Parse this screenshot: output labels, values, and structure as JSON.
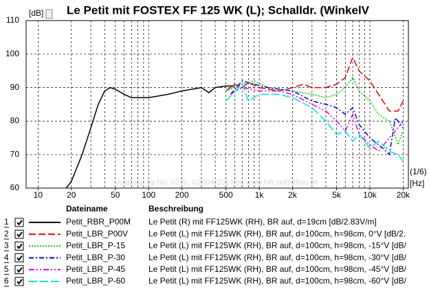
{
  "chart_data": {
    "type": "line",
    "log_x": true,
    "grid": true,
    "title": "Le Petit mit FOSTEX FF 125 WK (L); Schalldr. (WinkelV",
    "ylabel": "[dB]",
    "xlabel": "[Hz]",
    "smoothing": "(1/6)",
    "watermark": "JustDisp by No. 0270, ©2004-2014 by www.hifi-selbstbau.de",
    "legend_header_name": "Dateiname",
    "legend_header_desc": "Beschreibung",
    "xlim": [
      7.8,
      22300
    ],
    "ylim": [
      60,
      110
    ],
    "yticks": [
      60,
      70,
      80,
      90,
      100,
      110
    ],
    "xticks": [
      10,
      20,
      50,
      100,
      200,
      500,
      {
        "value": 1000,
        "label": "1k"
      },
      {
        "value": 2000,
        "label": "2k"
      },
      {
        "value": 5000,
        "label": "5k"
      },
      {
        "value": 10000,
        "label": "10k"
      },
      {
        "value": 20000,
        "label": "20k"
      }
    ],
    "xgrid": [
      10,
      20,
      30,
      40,
      50,
      60,
      70,
      80,
      90,
      100,
      200,
      300,
      400,
      500,
      600,
      700,
      800,
      900,
      1000,
      2000,
      3000,
      4000,
      5000,
      6000,
      7000,
      8000,
      9000,
      10000,
      20000
    ],
    "series": [
      {
        "number": "1",
        "name": "Petit_RBR_P00M",
        "description": "Le Petit (R) mit FF125WK (RH), BR auf, d=19cm [dB/2.83V/m]",
        "color": "#000000",
        "dash": "none",
        "x": [
          18,
          20,
          25,
          30,
          35,
          40,
          45,
          50,
          60,
          70,
          100,
          150,
          200,
          300,
          350,
          400,
          500,
          600
        ],
        "values": [
          60,
          62,
          70,
          78,
          85,
          89,
          90,
          89.5,
          88,
          87,
          87,
          88,
          89,
          90,
          88.5,
          90,
          90.5,
          90.5
        ]
      },
      {
        "number": "2",
        "name": "Petit_LBR_P00V",
        "description": "Le Petit (L) mit FF125WK (RH), BR auf, d=100cm, h=98cm, 0°V [dB/2.",
        "color": "#e00000",
        "dash": "10,4",
        "x": [
          500,
          600,
          700,
          800,
          1000,
          1500,
          2000,
          2500,
          3000,
          4000,
          5000,
          6000,
          7000,
          8000,
          10000,
          12000,
          15000,
          18000,
          20000
        ],
        "values": [
          89,
          91,
          90,
          91.5,
          90,
          89,
          90,
          91,
          90,
          90,
          91,
          93,
          99,
          95,
          92,
          88,
          83,
          83,
          86
        ]
      },
      {
        "number": "3",
        "name": "Petit_LBR_P-15",
        "description": "Le Petit (L) mit FF125WK (RH), BR auf, d=100cm, h=98cm, -15°V [dB/",
        "color": "#00cc00",
        "dash": "2,2",
        "x": [
          500,
          700,
          900,
          1200,
          2000,
          3000,
          4000,
          5000,
          6000,
          7000,
          8000,
          10000,
          12000,
          15000,
          18000,
          20000
        ],
        "values": [
          89,
          91,
          92,
          90,
          89,
          88,
          87,
          88,
          90,
          93,
          89,
          86,
          82,
          80,
          73,
          77
        ]
      },
      {
        "number": "4",
        "name": "Petit_LBR_P-30",
        "description": "Le Petit (L) mit FF125WK (RH), BR auf, d=100cm, h=98cm, -30°V [dB/",
        "color": "#0000cc",
        "dash": "7,3,2,3",
        "x": [
          550,
          700,
          900,
          1200,
          2000,
          3000,
          4000,
          5000,
          6000,
          7000,
          8000,
          10000,
          13000,
          15000,
          17000,
          20000
        ],
        "values": [
          88,
          92,
          91,
          90,
          89,
          86,
          85,
          84,
          82,
          84,
          79,
          75,
          72,
          70,
          81,
          78
        ]
      },
      {
        "number": "5",
        "name": "Petit_LBR_P-45",
        "description": "Le Petit (L) mit FF125WK (RH), BR auf, d=100cm, h=98cm, -45°V [dB/",
        "color": "#e000e0",
        "dash": "8,3,2,3,2,3",
        "x": [
          550,
          700,
          1000,
          1500,
          2000,
          3000,
          4000,
          5000,
          6000,
          7000,
          8000,
          10000,
          12000,
          15000,
          18000,
          20000
        ],
        "values": [
          88,
          90,
          89,
          89,
          88,
          85,
          83,
          80,
          77,
          82,
          76,
          73,
          71,
          75,
          78,
          80
        ]
      },
      {
        "number": "6",
        "name": "Petit_LBR_P-60",
        "description": "Le Petit (L) mit FF125WK (RH), BR auf, d=100cm, h=98cm, -60°V [dB/",
        "color": "#00e0e0",
        "dash": "12,4",
        "x": [
          500,
          700,
          800,
          1000,
          1500,
          2000,
          3000,
          4000,
          5000,
          6000,
          7000,
          8000,
          10000,
          12000,
          15000,
          18000,
          20000
        ],
        "values": [
          86,
          91,
          86,
          88,
          88,
          87,
          84,
          80,
          76,
          77,
          74,
          76,
          72,
          74,
          71,
          70,
          68
        ]
      }
    ]
  }
}
